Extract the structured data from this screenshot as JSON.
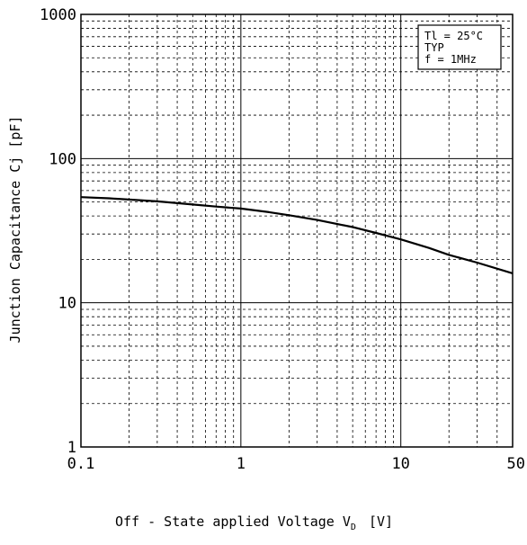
{
  "chart_data": {
    "type": "line",
    "x_scale": "log",
    "y_scale": "log",
    "xlim": [
      0.1,
      50
    ],
    "ylim": [
      1,
      1000
    ],
    "grid": true,
    "xlabel": "Off - State  applied  Voltage    V",
    "xlabel_sub": "D",
    "xlabel_unit": "[V]",
    "ylabel": "Junction  Capacitance   Cj [pF]",
    "x_tick_labels": [
      "0.1",
      "1",
      "10",
      "50"
    ],
    "x_tick_values": [
      0.1,
      1,
      10,
      50
    ],
    "y_tick_labels": [
      "1",
      "10",
      "100",
      "1000"
    ],
    "y_tick_values": [
      1,
      10,
      100,
      1000
    ],
    "annotation_box": {
      "lines": [
        "Tl = 25°C",
        "TYP",
        "f = 1MHz"
      ],
      "placement": "top-right"
    },
    "series": [
      {
        "x": [
          0.1,
          0.15,
          0.2,
          0.3,
          0.5,
          0.7,
          1,
          1.5,
          2,
          3,
          5,
          7,
          10,
          15,
          20,
          30,
          50
        ],
        "y": [
          54,
          53,
          52,
          50.5,
          48,
          46.5,
          45,
          42.5,
          40.5,
          37.5,
          33.5,
          30.5,
          27.5,
          24,
          21.5,
          19,
          16
        ]
      }
    ]
  }
}
